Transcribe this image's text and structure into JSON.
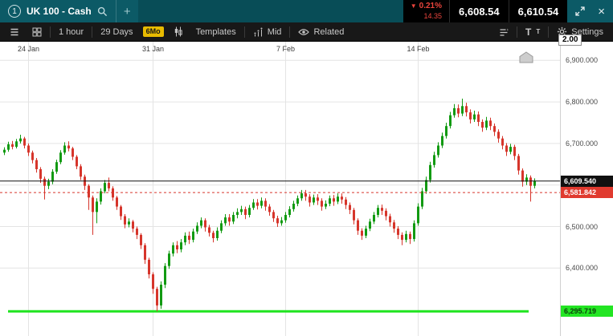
{
  "header": {
    "instrument_number": "1",
    "title": "UK 100 - Cash",
    "add_tab": "+",
    "down_arrow": "▼",
    "change_pct": "0.21%",
    "change_abs": "14.35",
    "sell_price": "6,608.54",
    "buy_price": "6,610.54",
    "close": "×"
  },
  "toolbar": {
    "interval": "1 hour",
    "range": "29 Days",
    "preset": "6Mo",
    "templates": "Templates",
    "mid": "Mid",
    "related": "Related",
    "text_size_large": "T",
    "text_size_small": "T",
    "settings": "Settings"
  },
  "axis": {
    "spread": "2.00",
    "ticks": [
      {
        "value": 6900,
        "label": "6,900.000"
      },
      {
        "value": 6800,
        "label": "6,800.000"
      },
      {
        "value": 6700,
        "label": "6,700.000"
      },
      {
        "value": 6600,
        "label": "6,600.000"
      },
      {
        "value": 6500,
        "label": "6,500.000"
      },
      {
        "value": 6400,
        "label": "6,400.000"
      }
    ],
    "tags": [
      {
        "value": 6609.54,
        "label": "6,609.540",
        "type": "current"
      },
      {
        "value": 6581.842,
        "label": "6,581.842",
        "type": "red"
      },
      {
        "value": 6295.719,
        "label": "6,295.719",
        "type": "green"
      }
    ]
  },
  "chart_data": {
    "type": "candlestick",
    "title": "UK 100 - Cash, 1 hour, 29 Days",
    "instrument": "UK 100 - Cash",
    "interval": "1 hour",
    "range": "29 Days",
    "ylim": [
      6237,
      6945
    ],
    "grid": true,
    "x_dates": [
      {
        "label": "24 Jan",
        "index": 6
      },
      {
        "label": "31 Jan",
        "index": 37
      },
      {
        "label": "7 Feb",
        "index": 70
      },
      {
        "label": "14 Feb",
        "index": 103
      }
    ],
    "y_ticks": [
      6900,
      6800,
      6700,
      6600,
      6500,
      6400
    ],
    "price_lines": {
      "current": 6609.54,
      "stop_red": 6581.842,
      "support_green": 6295.719
    },
    "colors": {
      "up": "#129a12",
      "down": "#d6352b",
      "current_line": "#111111",
      "red_line": "#d6352b",
      "green_line": "#1fe41f",
      "grid": "#e4e4e4"
    },
    "candles_ohlc": [
      [
        6678,
        6691,
        6672,
        6685
      ],
      [
        6685,
        6704,
        6680,
        6698
      ],
      [
        6698,
        6706,
        6686,
        6692
      ],
      [
        6692,
        6711,
        6688,
        6705
      ],
      [
        6705,
        6721,
        6700,
        6712
      ],
      [
        6712,
        6716,
        6688,
        6695
      ],
      [
        6695,
        6700,
        6670,
        6678
      ],
      [
        6678,
        6683,
        6652,
        6660
      ],
      [
        6660,
        6665,
        6630,
        6638
      ],
      [
        6638,
        6643,
        6605,
        6615
      ],
      [
        6615,
        6620,
        6565,
        6598
      ],
      [
        6598,
        6615,
        6590,
        6608
      ],
      [
        6608,
        6638,
        6602,
        6632
      ],
      [
        6632,
        6661,
        6627,
        6655
      ],
      [
        6655,
        6684,
        6650,
        6678
      ],
      [
        6678,
        6703,
        6673,
        6695
      ],
      [
        6695,
        6705,
        6681,
        6688
      ],
      [
        6688,
        6692,
        6660,
        6668
      ],
      [
        6668,
        6672,
        6638,
        6645
      ],
      [
        6645,
        6650,
        6612,
        6620
      ],
      [
        6620,
        6625,
        6588,
        6598
      ],
      [
        6598,
        6602,
        6540,
        6570
      ],
      [
        6570,
        6575,
        6480,
        6535
      ],
      [
        6535,
        6568,
        6508,
        6560
      ],
      [
        6560,
        6592,
        6553,
        6585
      ],
      [
        6585,
        6612,
        6580,
        6605
      ],
      [
        6605,
        6618,
        6585,
        6592
      ],
      [
        6592,
        6597,
        6562,
        6570
      ],
      [
        6570,
        6574,
        6540,
        6548
      ],
      [
        6548,
        6552,
        6516,
        6525
      ],
      [
        6525,
        6530,
        6496,
        6505
      ],
      [
        6505,
        6520,
        6498,
        6512
      ],
      [
        6512,
        6516,
        6486,
        6495
      ],
      [
        6495,
        6500,
        6470,
        6480
      ],
      [
        6480,
        6484,
        6446,
        6455
      ],
      [
        6455,
        6460,
        6410,
        6420
      ],
      [
        6420,
        6425,
        6375,
        6385
      ],
      [
        6385,
        6390,
        6338,
        6350
      ],
      [
        6350,
        6355,
        6296,
        6310
      ],
      [
        6310,
        6368,
        6302,
        6360
      ],
      [
        6360,
        6412,
        6352,
        6405
      ],
      [
        6405,
        6442,
        6398,
        6435
      ],
      [
        6435,
        6462,
        6428,
        6455
      ],
      [
        6455,
        6465,
        6436,
        6445
      ],
      [
        6445,
        6470,
        6438,
        6462
      ],
      [
        6462,
        6486,
        6455,
        6478
      ],
      [
        6478,
        6488,
        6458,
        6468
      ],
      [
        6468,
        6495,
        6462,
        6488
      ],
      [
        6488,
        6510,
        6482,
        6502
      ],
      [
        6502,
        6522,
        6496,
        6515
      ],
      [
        6515,
        6520,
        6488,
        6498
      ],
      [
        6498,
        6504,
        6476,
        6485
      ],
      [
        6485,
        6490,
        6462,
        6472
      ],
      [
        6472,
        6498,
        6466,
        6490
      ],
      [
        6490,
        6515,
        6484,
        6508
      ],
      [
        6508,
        6530,
        6502,
        6522
      ],
      [
        6522,
        6530,
        6502,
        6512
      ],
      [
        6512,
        6535,
        6506,
        6528
      ],
      [
        6528,
        6544,
        6520,
        6535
      ],
      [
        6535,
        6550,
        6528,
        6542
      ],
      [
        6542,
        6548,
        6518,
        6528
      ],
      [
        6528,
        6552,
        6522,
        6545
      ],
      [
        6545,
        6566,
        6540,
        6558
      ],
      [
        6558,
        6566,
        6541,
        6550
      ],
      [
        6550,
        6570,
        6544,
        6562
      ],
      [
        6562,
        6568,
        6538,
        6548
      ],
      [
        6548,
        6554,
        6526,
        6535
      ],
      [
        6535,
        6540,
        6511,
        6520
      ],
      [
        6520,
        6526,
        6499,
        6508
      ],
      [
        6508,
        6523,
        6502,
        6515
      ],
      [
        6515,
        6535,
        6509,
        6528
      ],
      [
        6528,
        6549,
        6522,
        6542
      ],
      [
        6542,
        6562,
        6536,
        6555
      ],
      [
        6555,
        6575,
        6549,
        6568
      ],
      [
        6568,
        6588,
        6562,
        6580
      ],
      [
        6580,
        6588,
        6562,
        6572
      ],
      [
        6572,
        6578,
        6548,
        6558
      ],
      [
        6558,
        6577,
        6552,
        6570
      ],
      [
        6570,
        6578,
        6552,
        6562
      ],
      [
        6562,
        6568,
        6538,
        6548
      ],
      [
        6548,
        6563,
        6542,
        6555
      ],
      [
        6555,
        6575,
        6549,
        6568
      ],
      [
        6568,
        6576,
        6550,
        6560
      ],
      [
        6560,
        6580,
        6554,
        6572
      ],
      [
        6572,
        6580,
        6555,
        6565
      ],
      [
        6565,
        6571,
        6542,
        6552
      ],
      [
        6552,
        6558,
        6530,
        6540
      ],
      [
        6540,
        6545,
        6505,
        6515
      ],
      [
        6515,
        6520,
        6480,
        6490
      ],
      [
        6490,
        6496,
        6468,
        6478
      ],
      [
        6478,
        6502,
        6472,
        6495
      ],
      [
        6495,
        6519,
        6489,
        6512
      ],
      [
        6512,
        6535,
        6506,
        6528
      ],
      [
        6528,
        6552,
        6522,
        6545
      ],
      [
        6545,
        6553,
        6528,
        6538
      ],
      [
        6538,
        6544,
        6515,
        6525
      ],
      [
        6525,
        6531,
        6500,
        6510
      ],
      [
        6510,
        6516,
        6485,
        6495
      ],
      [
        6495,
        6501,
        6470,
        6480
      ],
      [
        6480,
        6486,
        6455,
        6468
      ],
      [
        6468,
        6490,
        6462,
        6482
      ],
      [
        6482,
        6488,
        6458,
        6470
      ],
      [
        6470,
        6515,
        6464,
        6508
      ],
      [
        6508,
        6556,
        6502,
        6548
      ],
      [
        6548,
        6593,
        6542,
        6585
      ],
      [
        6585,
        6620,
        6579,
        6612
      ],
      [
        6612,
        6656,
        6606,
        6648
      ],
      [
        6648,
        6680,
        6642,
        6672
      ],
      [
        6672,
        6703,
        6666,
        6695
      ],
      [
        6695,
        6726,
        6689,
        6718
      ],
      [
        6718,
        6750,
        6712,
        6742
      ],
      [
        6742,
        6776,
        6736,
        6768
      ],
      [
        6768,
        6795,
        6762,
        6785
      ],
      [
        6785,
        6794,
        6763,
        6772
      ],
      [
        6772,
        6808,
        6766,
        6790
      ],
      [
        6790,
        6798,
        6765,
        6775
      ],
      [
        6775,
        6782,
        6748,
        6758
      ],
      [
        6758,
        6779,
        6752,
        6770
      ],
      [
        6770,
        6777,
        6742,
        6752
      ],
      [
        6752,
        6758,
        6728,
        6738
      ],
      [
        6738,
        6764,
        6732,
        6755
      ],
      [
        6755,
        6762,
        6732,
        6742
      ],
      [
        6742,
        6748,
        6718,
        6728
      ],
      [
        6728,
        6734,
        6702,
        6712
      ],
      [
        6712,
        6718,
        6686,
        6695
      ],
      [
        6695,
        6701,
        6670,
        6680
      ],
      [
        6680,
        6699,
        6674,
        6692
      ],
      [
        6692,
        6697,
        6660,
        6670
      ],
      [
        6670,
        6675,
        6625,
        6635
      ],
      [
        6635,
        6640,
        6596,
        6608
      ],
      [
        6608,
        6626,
        6600,
        6618
      ],
      [
        6618,
        6623,
        6560,
        6598
      ],
      [
        6598,
        6616,
        6592,
        6609.54
      ]
    ]
  }
}
